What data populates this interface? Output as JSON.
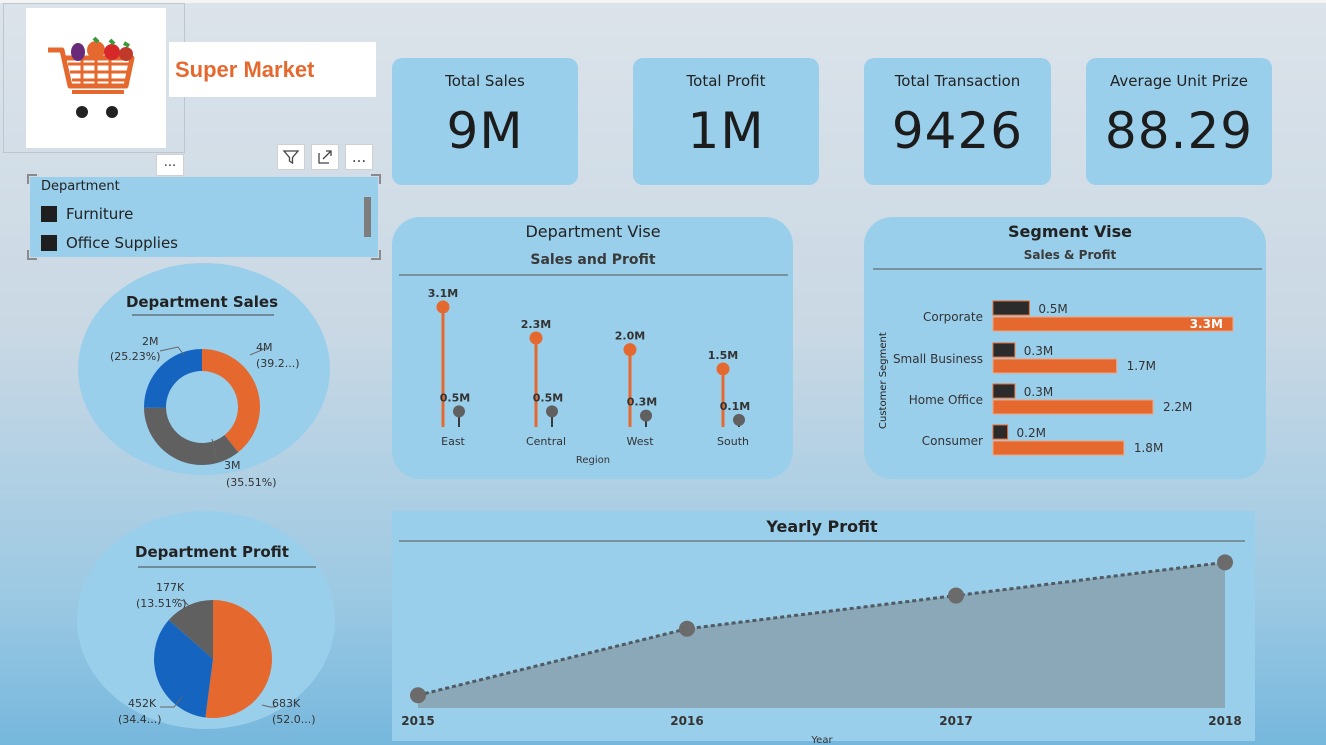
{
  "app_title": "Super Market",
  "kpis": [
    {
      "label": "Total Sales",
      "value": "9M"
    },
    {
      "label": "Total Profit",
      "value": "1M"
    },
    {
      "label": "Total Transaction",
      "value": "9426"
    },
    {
      "label": "Average Unit Prize",
      "value": "88.29"
    }
  ],
  "slicer": {
    "header": "Department",
    "items": [
      "Furniture",
      "Office Supplies"
    ]
  },
  "toolbar": {
    "more_label": "..."
  },
  "colors": {
    "orange": "#e5692f",
    "blue": "#1565c0",
    "gray": "#606060",
    "dark": "#2b2b2b",
    "panel": "#9acfec"
  },
  "chart_data": [
    {
      "type": "pie",
      "variant": "donut",
      "title": "Department Sales",
      "slices": [
        {
          "value": 4,
          "label": "4M",
          "pct": "(39.2...)",
          "color": "#e5692f"
        },
        {
          "value": 3,
          "label": "3M",
          "pct": "(35.51%)",
          "color": "#606060"
        },
        {
          "value": 2,
          "label": "2M",
          "pct": "(25.23%)",
          "color": "#1565c0"
        }
      ],
      "slice_percents": [
        39.26,
        35.51,
        25.23
      ]
    },
    {
      "type": "line",
      "variant": "lollipop",
      "title": "Department Vise",
      "subtitle": "Sales and Profit",
      "xlabel": "Region",
      "categories": [
        "East",
        "Central",
        "West",
        "South"
      ],
      "series": [
        {
          "values": [
            3.1,
            2.3,
            2.0,
            1.5
          ],
          "labels": [
            "3.1M",
            "2.3M",
            "2.0M",
            "1.5M"
          ],
          "color": "#e5692f"
        },
        {
          "values": [
            0.5,
            0.5,
            0.3,
            0.1
          ],
          "labels": [
            "0.5M",
            "0.5M",
            "0.3M",
            "0.1M"
          ],
          "color": "#606060"
        }
      ]
    },
    {
      "type": "bar",
      "orientation": "horizontal",
      "title": "Segment Vise",
      "subtitle": "Sales & Profit",
      "ylabel": "Customer Segment",
      "categories": [
        "Corporate",
        "Small Business",
        "Home Office",
        "Consumer"
      ],
      "series": [
        {
          "values": [
            0.5,
            0.3,
            0.3,
            0.2
          ],
          "labels": [
            "0.5M",
            "0.3M",
            "0.3M",
            "0.2M"
          ],
          "color": "#2b2b2b"
        },
        {
          "values": [
            3.3,
            1.7,
            2.2,
            1.8
          ],
          "labels": [
            "3.3M",
            "1.7M",
            "2.2M",
            "1.8M"
          ],
          "color": "#e5692f"
        }
      ]
    },
    {
      "type": "pie",
      "title": "Department Profit",
      "slices": [
        {
          "value": 683,
          "label": "683K",
          "pct": "(52.0...)",
          "color": "#e5692f"
        },
        {
          "value": 452,
          "label": "452K",
          "pct": "(34.4...)",
          "color": "#1565c0"
        },
        {
          "value": 177,
          "label": "177K",
          "pct": "(13.51%)",
          "color": "#606060"
        }
      ]
    },
    {
      "type": "area",
      "title": "Yearly Profit",
      "xlabel": "Year",
      "categories": [
        "2015",
        "2016",
        "2017",
        "2018"
      ],
      "values": [
        0.05,
        0.31,
        0.44,
        0.57
      ],
      "ylim": [
        0,
        0.63
      ]
    }
  ]
}
